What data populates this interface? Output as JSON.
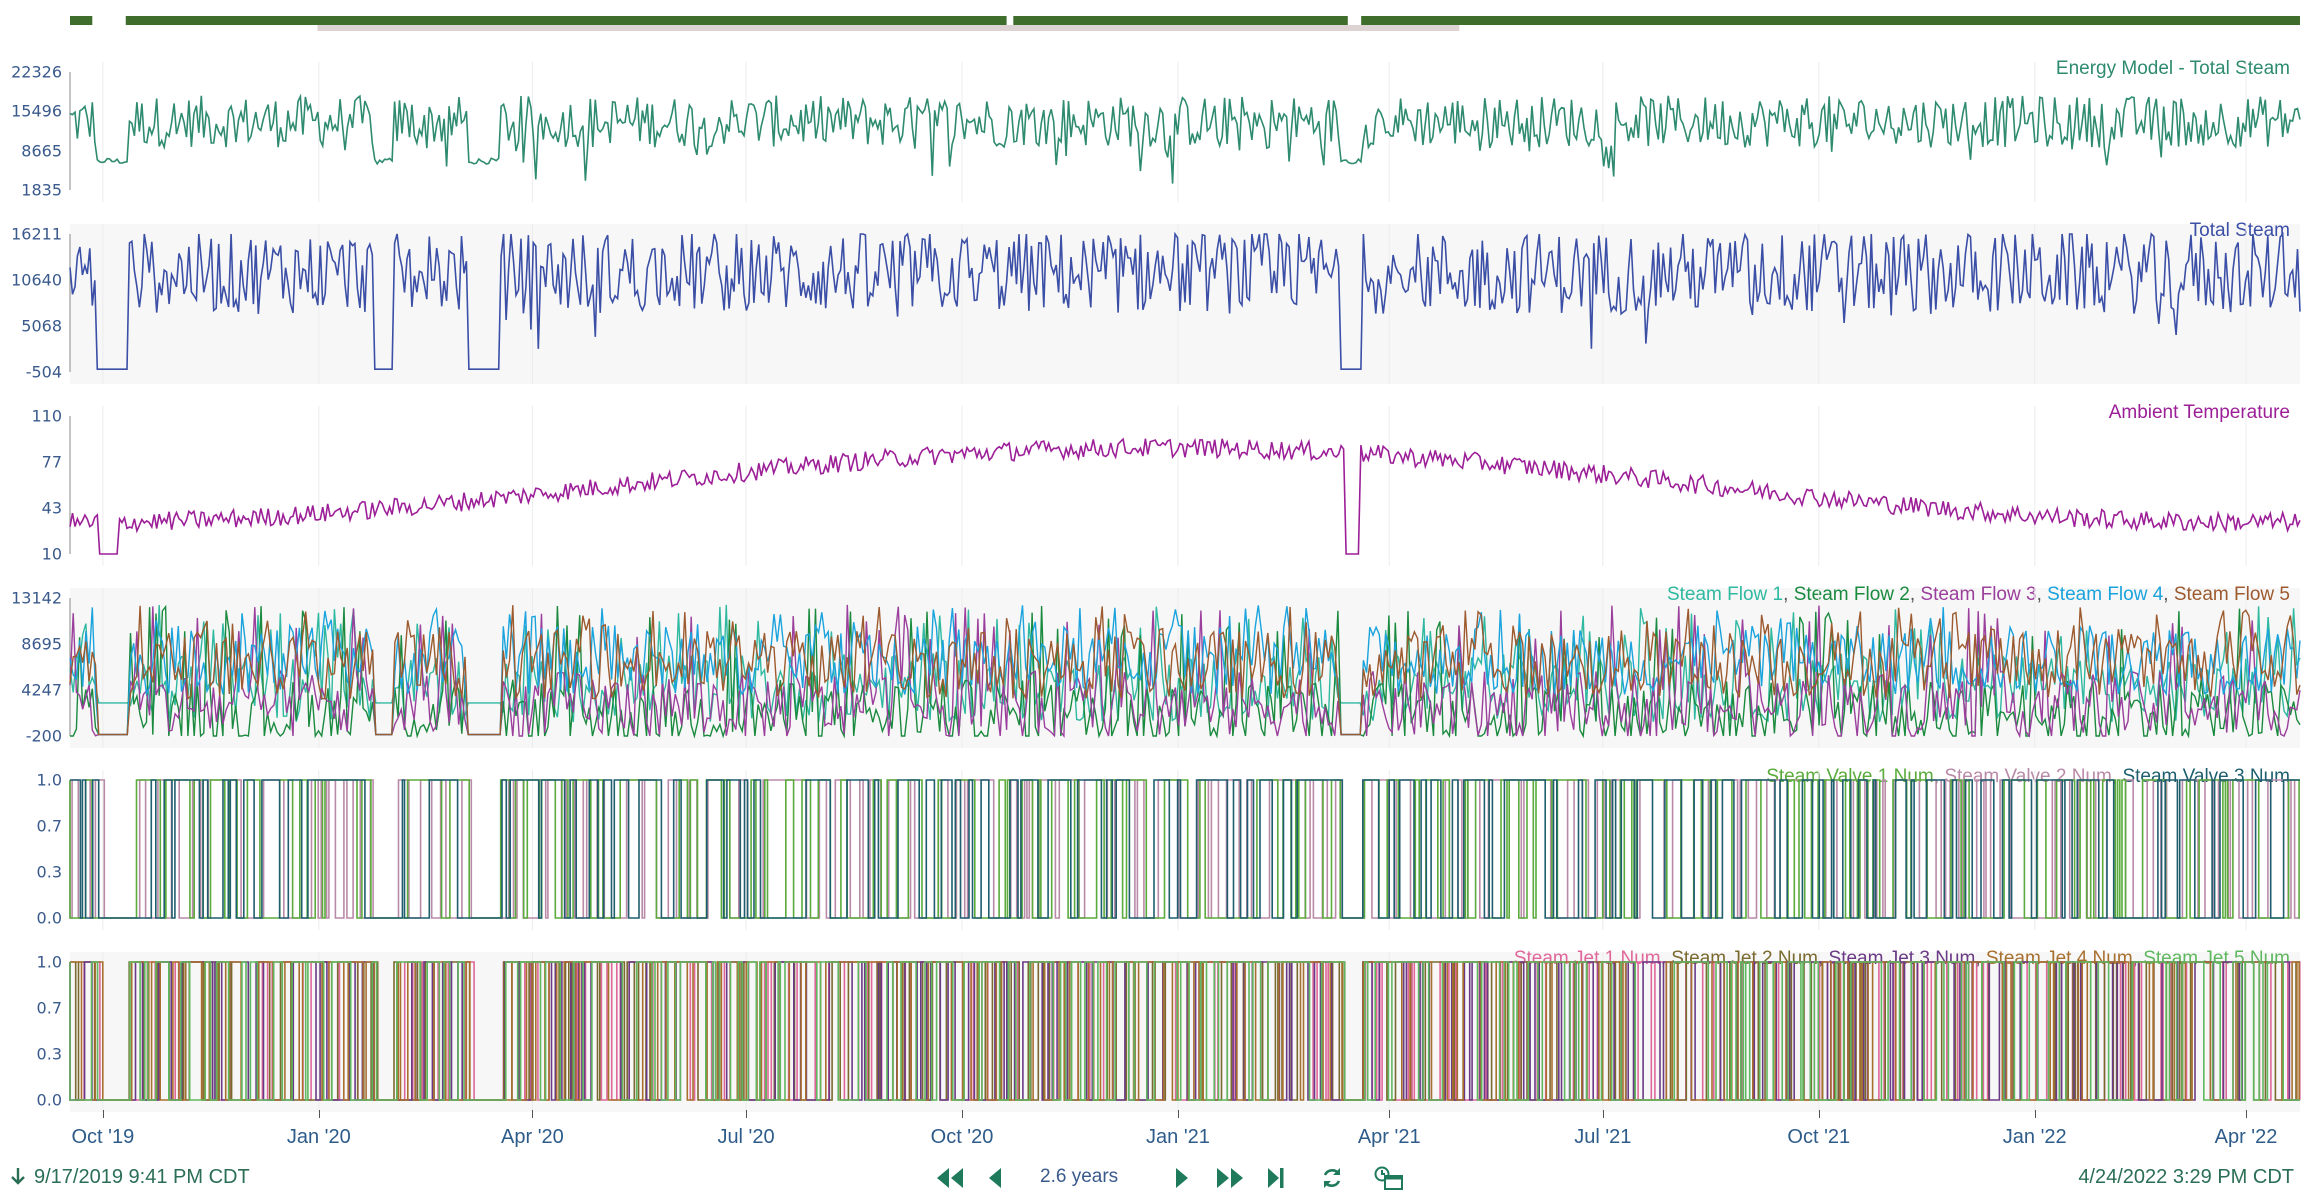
{
  "colors": {
    "overview_bar": "#3f6e2c",
    "overview_window": "#ddd3d3",
    "grid": "#d9d9d9",
    "axis_text": "#3a5a8c",
    "footer_text": "#2a6e55"
  },
  "overview": {
    "gaps": [
      [
        0.01,
        0.025
      ],
      [
        0.42,
        0.423
      ],
      [
        0.573,
        0.579
      ]
    ],
    "window": [
      0.111,
      0.623
    ]
  },
  "panels": [
    {
      "id": "energy-model",
      "legend": [
        {
          "name": "Energy Model - Total Steam",
          "color": "#2e8b6f"
        }
      ],
      "y_ticks": [
        "22326",
        "15496",
        "8665",
        "1835"
      ],
      "shaded": false,
      "chart_data": {
        "type": "line",
        "ylim": [
          1835,
          22326
        ],
        "x_range": [
          "2019-09-17",
          "2022-04-24"
        ],
        "series": [
          {
            "name": "Energy Model - Total Steam",
            "mean": 0.58,
            "amp": 0.22
          }
        ]
      }
    },
    {
      "id": "total-steam",
      "legend": [
        {
          "name": "Total Steam",
          "color": "#3b4fa6"
        }
      ],
      "y_ticks": [
        "16211",
        "10640",
        "5068",
        "-504"
      ],
      "shaded": true,
      "chart_data": {
        "type": "line",
        "ylim": [
          -504,
          16211
        ],
        "x_range": [
          "2019-09-17",
          "2022-04-24"
        ],
        "series": [
          {
            "name": "Total Steam",
            "mean": 0.72,
            "amp": 0.3
          }
        ]
      }
    },
    {
      "id": "ambient-temperature",
      "legend": [
        {
          "name": "Ambient Temperature",
          "color": "#9c1f98"
        }
      ],
      "y_ticks": [
        "110",
        "77",
        "43",
        "10"
      ],
      "shaded": false,
      "chart_data": {
        "type": "line",
        "ylim": [
          10,
          110
        ],
        "x_range": [
          "2019-09-17",
          "2022-04-24"
        ],
        "series": [
          {
            "name": "Ambient Temperature",
            "seasonal": true
          }
        ]
      }
    },
    {
      "id": "steam-flows",
      "legend": [
        {
          "name": "Steam Flow 1",
          "color": "#2fb9a0"
        },
        {
          "name": "Steam Flow 2",
          "color": "#1a8a3f"
        },
        {
          "name": "Steam Flow 3",
          "color": "#9b3f9c"
        },
        {
          "name": "Steam Flow 4",
          "color": "#1aa3dc"
        },
        {
          "name": "Steam Flow 5",
          "color": "#9c5a2e"
        }
      ],
      "y_ticks": [
        "13142",
        "8695",
        "4247",
        "-200"
      ],
      "shaded": true,
      "chart_data": {
        "type": "line",
        "ylim": [
          -200,
          13142
        ],
        "x_range": [
          "2019-09-17",
          "2022-04-24"
        ],
        "series": [
          {
            "name": "Steam Flow 1"
          },
          {
            "name": "Steam Flow 2"
          },
          {
            "name": "Steam Flow 3"
          },
          {
            "name": "Steam Flow 4"
          },
          {
            "name": "Steam Flow 5"
          }
        ]
      }
    },
    {
      "id": "steam-valves",
      "legend": [
        {
          "name": "Steam Valve 1 Num",
          "color": "#5aab3c"
        },
        {
          "name": "Steam Valve 2 Num",
          "color": "#b98aa8"
        },
        {
          "name": "Steam Valve 3 Num",
          "color": "#1e5e6e"
        }
      ],
      "y_ticks": [
        "1.0",
        "0.7",
        "0.3",
        "0.0"
      ],
      "shaded": false,
      "chart_data": {
        "type": "line",
        "ylim": [
          0,
          1
        ],
        "x_range": [
          "2019-09-17",
          "2022-04-24"
        ],
        "series": [
          {
            "name": "Steam Valve 1 Num"
          },
          {
            "name": "Steam Valve 2 Num"
          },
          {
            "name": "Steam Valve 3 Num"
          }
        ]
      }
    },
    {
      "id": "steam-jets",
      "legend": [
        {
          "name": "Steam Jet 1 Num",
          "color": "#e0679a"
        },
        {
          "name": "Steam Jet 2 Num",
          "color": "#7a6a2e"
        },
        {
          "name": "Steam Jet 3 Num",
          "color": "#6b3a86"
        },
        {
          "name": "Steam Jet 4 Num",
          "color": "#a8702e"
        },
        {
          "name": "Steam Jet 5 Num",
          "color": "#5fb85f"
        }
      ],
      "y_ticks": [
        "1.0",
        "0.7",
        "0.3",
        "0.0"
      ],
      "shaded": true,
      "chart_data": {
        "type": "line",
        "ylim": [
          0,
          1
        ],
        "x_range": [
          "2019-09-17",
          "2022-04-24"
        ],
        "series": [
          {
            "name": "Steam Jet 1 Num"
          },
          {
            "name": "Steam Jet 2 Num"
          },
          {
            "name": "Steam Jet 3 Num"
          },
          {
            "name": "Steam Jet 4 Num"
          },
          {
            "name": "Steam Jet 5 Num"
          }
        ]
      }
    }
  ],
  "x_axis": {
    "ticks": [
      {
        "label": "Oct '19",
        "date": "2019-10-01"
      },
      {
        "label": "Jan '20",
        "date": "2020-01-01"
      },
      {
        "label": "Apr '20",
        "date": "2020-04-01"
      },
      {
        "label": "Jul '20",
        "date": "2020-07-01"
      },
      {
        "label": "Oct '20",
        "date": "2020-10-01"
      },
      {
        "label": "Jan '21",
        "date": "2021-01-01"
      },
      {
        "label": "Apr '21",
        "date": "2021-04-01"
      },
      {
        "label": "Jul '21",
        "date": "2021-07-01"
      },
      {
        "label": "Oct '21",
        "date": "2021-10-01"
      },
      {
        "label": "Jan '22",
        "date": "2022-01-01"
      },
      {
        "label": "Apr '22",
        "date": "2022-04-01"
      }
    ],
    "start": "2019-09-17",
    "end": "2022-04-24"
  },
  "footer": {
    "start_time": "9/17/2019 9:41 PM  CDT",
    "end_time": "4/24/2022 3:29 PM  CDT",
    "duration": "2.6 years",
    "controls": [
      {
        "name": "step-back-fast-button",
        "icon": "double-left-arrow"
      },
      {
        "name": "step-back-button",
        "icon": "left-arrow"
      },
      {
        "name": "step-forward-button",
        "icon": "right-arrow"
      },
      {
        "name": "step-forward-fast-button",
        "icon": "double-right-arrow"
      },
      {
        "name": "jump-to-end-button",
        "icon": "skip-to-end"
      },
      {
        "name": "refresh-button",
        "icon": "refresh"
      },
      {
        "name": "timezone-button",
        "icon": "clock-window"
      }
    ]
  }
}
